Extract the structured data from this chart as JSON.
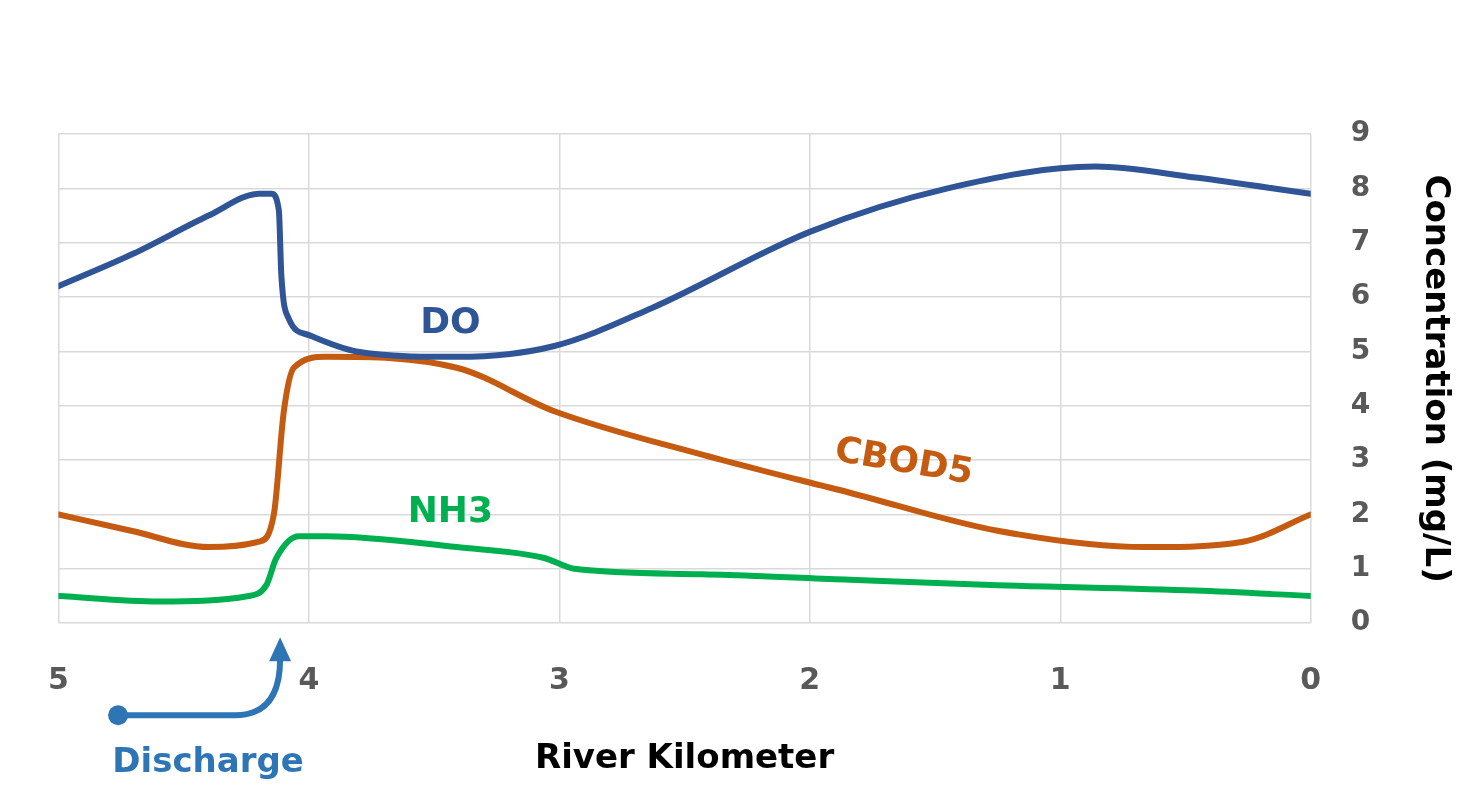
{
  "chart_data": {
    "type": "line",
    "xlabel": "River Kilometer",
    "ylabel": "Concentration (mg/L)",
    "xlim": [
      5,
      0
    ],
    "xticks": [
      5,
      4,
      3,
      2,
      1,
      0
    ],
    "ylim": [
      0,
      9
    ],
    "yticks": [
      0,
      1,
      2,
      3,
      4,
      5,
      6,
      7,
      8,
      9
    ],
    "grid": true,
    "legend": false,
    "marker": "none",
    "series": [
      {
        "name": "DO",
        "color": "#2f5597",
        "x": [
          5,
          4.7,
          4.4,
          4.2,
          4.15,
          4.12,
          4.11,
          4.08,
          4.0,
          3.81,
          3.41,
          3.02,
          2.63,
          2.0,
          1.45,
          0.86,
          0.46,
          0
        ],
        "values": [
          6.2,
          6.8,
          7.5,
          7.9,
          7.9,
          7.6,
          6.4,
          5.6,
          5.3,
          5.0,
          4.9,
          5.1,
          5.8,
          7.2,
          8.0,
          8.4,
          8.2,
          7.9
        ]
      },
      {
        "name": "CBOD5",
        "color": "#c55a11",
        "x": [
          5,
          4.71,
          4.4,
          4.2,
          4.14,
          4.1,
          4.06,
          3.93,
          3.41,
          3.02,
          2.43,
          1.84,
          1.25,
          0.66,
          0.27,
          0
        ],
        "values": [
          2.0,
          1.7,
          1.4,
          1.5,
          2.0,
          3.9,
          4.7,
          4.9,
          4.7,
          3.9,
          3.1,
          2.4,
          1.7,
          1.4,
          1.5,
          2.0
        ]
      },
      {
        "name": "NH3",
        "color": "#00b050",
        "x": [
          5,
          4.6,
          4.24,
          4.17,
          4.13,
          4.04,
          3.93,
          3.41,
          3.06,
          2.94,
          2.43,
          1.84,
          1.25,
          0.46,
          0
        ],
        "values": [
          0.5,
          0.4,
          0.5,
          0.7,
          1.2,
          1.6,
          1.6,
          1.4,
          1.2,
          1.0,
          0.9,
          0.8,
          0.7,
          0.6,
          0.5
        ]
      }
    ],
    "annotations": [
      "Discharge"
    ]
  }
}
